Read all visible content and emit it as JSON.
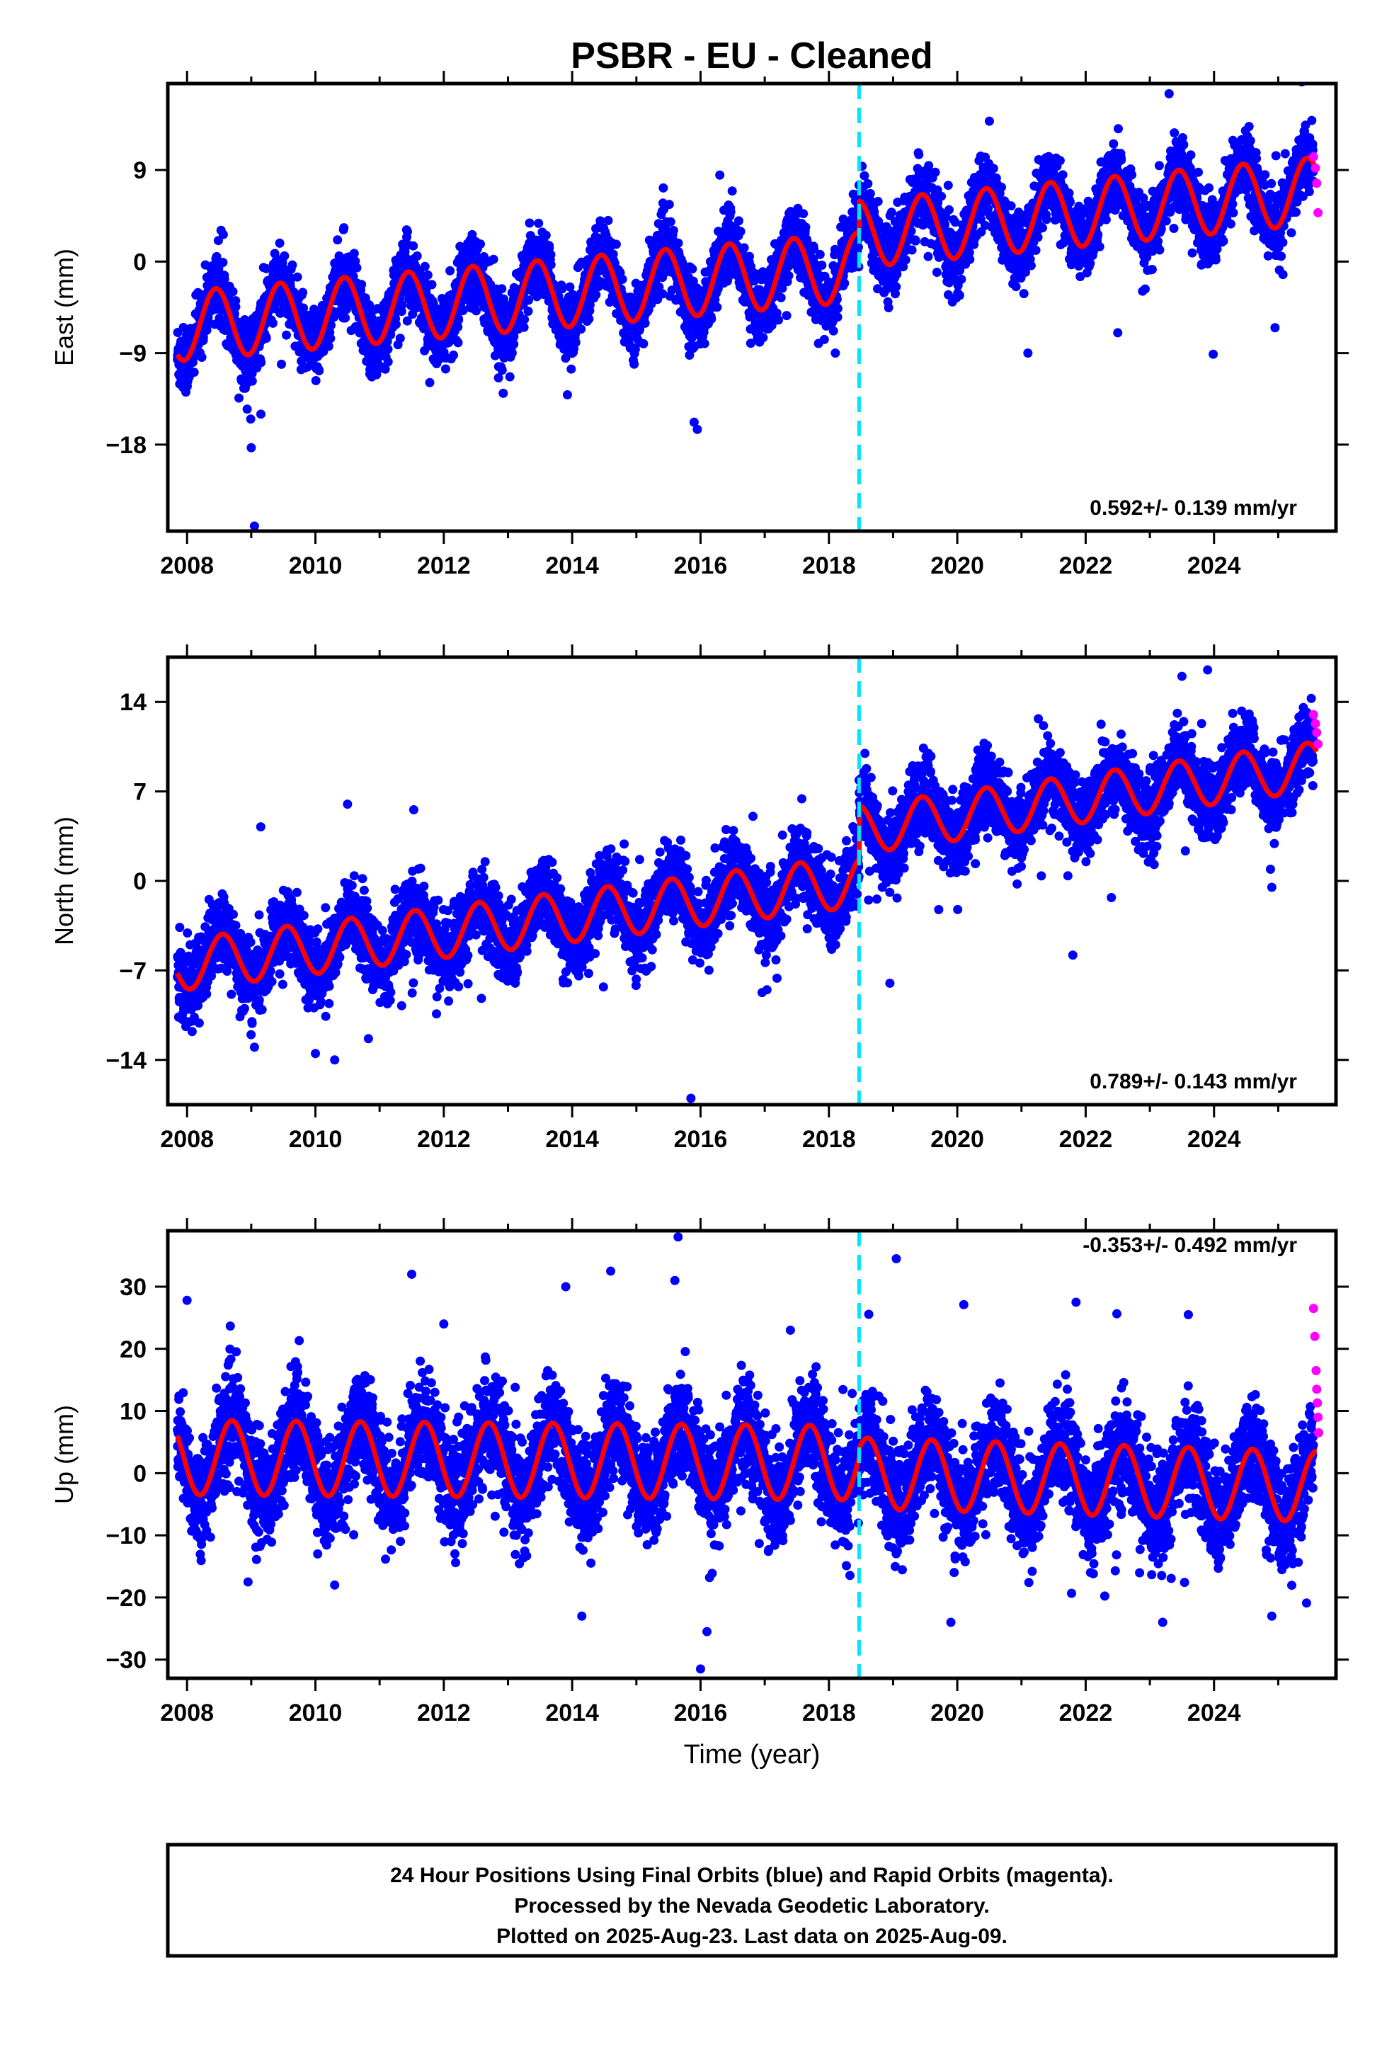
{
  "chart_data": {
    "title": "PSBR  - EU - Cleaned",
    "type": "scatter",
    "xlabel": "Time (year)",
    "xlim": [
      2007.7,
      2025.9
    ],
    "xticks": [
      2008,
      2010,
      2012,
      2014,
      2016,
      2018,
      2020,
      2022,
      2024
    ],
    "event_year": 2018.47,
    "last_data": 2025.6,
    "panels": [
      {
        "id": "east",
        "ylabel": "East (mm)",
        "ylim": [
          -26.5,
          17.5
        ],
        "yticks": [
          -18,
          -9,
          0,
          9
        ],
        "rate_label": "0.592+/- 0.139 mm/yr",
        "model": {
          "before": {
            "start": 2007.85,
            "end": 2018.47,
            "intercept_at_2008": -6.3,
            "slope": 0.55,
            "amplitude": 3.4,
            "peak_phase": 0.45
          },
          "after": {
            "start": 2018.47,
            "end": 2025.6,
            "intercept_at_2018_47": 2.7,
            "slope": 0.6,
            "amplitude": 3.3,
            "peak_phase": 0.45
          },
          "noise": 1.6
        },
        "outliers": [
          {
            "x": 2009.05,
            "y": -26
          },
          {
            "x": 2009.0,
            "y": -18.3
          },
          {
            "x": 2009.15,
            "y": -15
          },
          {
            "x": 2015.9,
            "y": -15.8
          },
          {
            "x": 2015.95,
            "y": -16.5
          },
          {
            "x": 2023.3,
            "y": 16.5
          },
          {
            "x": 2020.5,
            "y": 13.8
          },
          {
            "x": 2021.1,
            "y": -9
          },
          {
            "x": 2022.5,
            "y": -7
          },
          {
            "x": 2024.95,
            "y": -6.5
          },
          {
            "x": 2018.1,
            "y": -9
          },
          {
            "x": 2016.3,
            "y": 8.5
          }
        ],
        "rapid_points": [
          {
            "x": 2025.55,
            "y": 10.3
          },
          {
            "x": 2025.58,
            "y": 9.2
          },
          {
            "x": 2025.6,
            "y": 7.7
          },
          {
            "x": 2025.62,
            "y": 4.8
          }
        ]
      },
      {
        "id": "north",
        "ylabel": "North (mm)",
        "ylim": [
          -17.5,
          17.5
        ],
        "yticks": [
          -14,
          -7,
          0,
          7,
          14
        ],
        "rate_label": "0.789+/- 0.143 mm/yr",
        "model": {
          "before": {
            "start": 2007.85,
            "end": 2018.47,
            "intercept_at_2008": -6.5,
            "slope": 0.62,
            "amplitude": 2.0,
            "peak_phase": 0.55
          },
          "after": {
            "start": 2018.47,
            "end": 2025.6,
            "intercept_at_2018_47": 4.0,
            "slope": 0.7,
            "amplitude": 1.9,
            "peak_phase": 0.45
          },
          "noise": 1.4
        },
        "outliers": [
          {
            "x": 2009.05,
            "y": -13
          },
          {
            "x": 2010.0,
            "y": -13.5
          },
          {
            "x": 2010.3,
            "y": -14
          },
          {
            "x": 2010.5,
            "y": 6
          },
          {
            "x": 2015.85,
            "y": -17
          },
          {
            "x": 2018.95,
            "y": -8
          },
          {
            "x": 2021.8,
            "y": -5.8
          },
          {
            "x": 2023.5,
            "y": 16
          },
          {
            "x": 2023.9,
            "y": 16.5
          },
          {
            "x": 2024.9,
            "y": -0.5
          },
          {
            "x": 2022.4,
            "y": -1.3
          }
        ],
        "rapid_points": [
          {
            "x": 2025.55,
            "y": 13
          },
          {
            "x": 2025.58,
            "y": 12.3
          },
          {
            "x": 2025.6,
            "y": 11.6
          },
          {
            "x": 2025.62,
            "y": 10.7
          }
        ]
      },
      {
        "id": "up",
        "ylabel": "Up (mm)",
        "ylim": [
          -33,
          39
        ],
        "yticks": [
          -30,
          -20,
          -10,
          0,
          10,
          20,
          30
        ],
        "rate_label": "-0.353+/- 0.492 mm/yr",
        "model": {
          "before": {
            "start": 2007.85,
            "end": 2018.47,
            "intercept_at_2008": 2.5,
            "slope": -0.08,
            "amplitude": 6.0,
            "peak_phase": 0.7
          },
          "after": {
            "start": 2018.47,
            "end": 2025.6,
            "intercept_at_2018_47": 0.0,
            "slope": -0.3,
            "amplitude": 5.7,
            "peak_phase": 0.6
          },
          "noise": 4.0
        },
        "outliers": [
          {
            "x": 2015.65,
            "y": 38
          },
          {
            "x": 2015.6,
            "y": 31
          },
          {
            "x": 2014.6,
            "y": 32.5
          },
          {
            "x": 2011.5,
            "y": 32
          },
          {
            "x": 2008.0,
            "y": 27.8
          },
          {
            "x": 2013.9,
            "y": 30
          },
          {
            "x": 2016.0,
            "y": -31.5
          },
          {
            "x": 2016.1,
            "y": -25.5
          },
          {
            "x": 2014.15,
            "y": -23
          },
          {
            "x": 2019.05,
            "y": 34.5
          },
          {
            "x": 2019.9,
            "y": -24
          },
          {
            "x": 2023.2,
            "y": -24
          },
          {
            "x": 2021.85,
            "y": 27.5
          },
          {
            "x": 2023.6,
            "y": 25.5
          },
          {
            "x": 2008.95,
            "y": -17.5
          },
          {
            "x": 2010.3,
            "y": -18
          },
          {
            "x": 2012.0,
            "y": 24
          },
          {
            "x": 2017.4,
            "y": 23
          },
          {
            "x": 2024.9,
            "y": -23
          }
        ],
        "rapid_points": [
          {
            "x": 2025.55,
            "y": 26.5
          },
          {
            "x": 2025.57,
            "y": 22
          },
          {
            "x": 2025.59,
            "y": 16.5
          },
          {
            "x": 2025.6,
            "y": 13.5
          },
          {
            "x": 2025.61,
            "y": 11.3
          },
          {
            "x": 2025.62,
            "y": 9
          },
          {
            "x": 2025.63,
            "y": 6.5
          }
        ]
      }
    ],
    "series": [
      {
        "name": "Final Orbits",
        "color": "#0000ff"
      },
      {
        "name": "Rapid Orbits",
        "color": "#ff00ff"
      },
      {
        "name": "model",
        "color": "#ff0000"
      },
      {
        "name": "equipment change",
        "color": "#00e5ff"
      }
    ],
    "footer": [
      "24 Hour Positions Using Final Orbits (blue) and Rapid Orbits (magenta).",
      "Processed by the Nevada Geodetic Laboratory.",
      "Plotted on 2025-Aug-23. Last data on 2025-Aug-09."
    ]
  }
}
